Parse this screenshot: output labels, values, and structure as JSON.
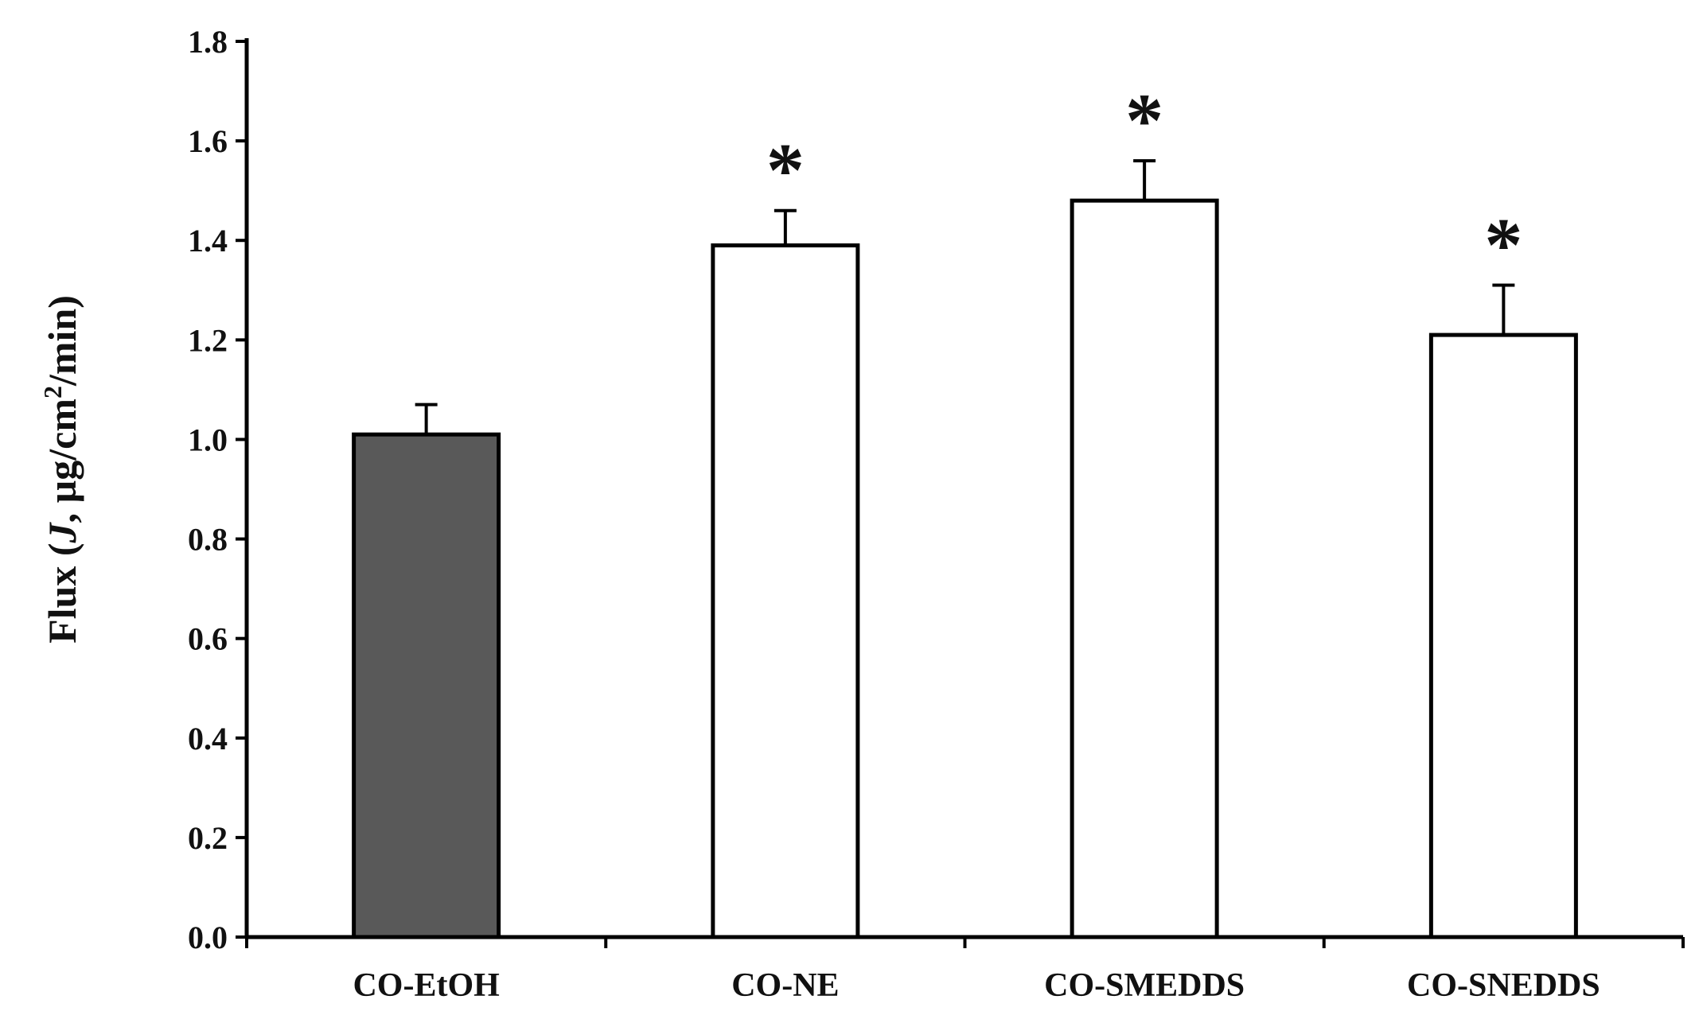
{
  "chart_data": {
    "type": "bar",
    "categories": [
      "CO-EtOH",
      "CO-NE",
      "CO-SMEDDS",
      "CO-SNEDDS"
    ],
    "series": [
      {
        "values": [
          1.01,
          1.39,
          1.48,
          1.21
        ],
        "errors": [
          0.06,
          0.07,
          0.08,
          0.1
        ],
        "fills": [
          "#595959",
          "#ffffff",
          "#ffffff",
          "#ffffff"
        ]
      }
    ],
    "significance": [
      "",
      "*",
      "*",
      "*"
    ],
    "ylabel": {
      "prefix": "Flux (",
      "italic": "J",
      "middle": ", µg/cm",
      "superscript": "2",
      "suffix": "/min)"
    },
    "ylim": [
      0,
      1.8
    ],
    "yticks": [
      "0.0",
      "0.2",
      "0.4",
      "0.6",
      "0.8",
      "1.0",
      "1.2",
      "1.4",
      "1.6",
      "1.8"
    ],
    "grid": false,
    "colors": {
      "axis": "#000000",
      "bar_stroke": "#000000"
    }
  }
}
